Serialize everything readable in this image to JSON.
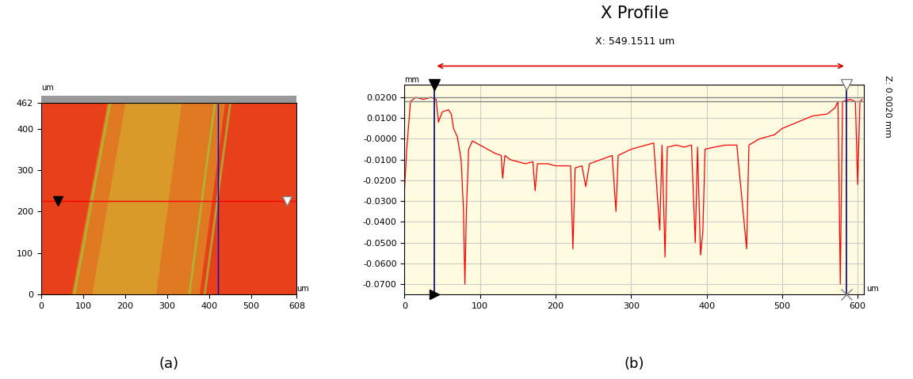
{
  "chart_data": [
    {
      "type": "image",
      "caption": "(a)",
      "x_unit": "um",
      "y_unit": "um",
      "xlim": [
        0,
        608
      ],
      "ylim": [
        0,
        462
      ],
      "xticks": [
        0,
        100,
        200,
        300,
        400,
        500,
        608
      ],
      "yticks": [
        0,
        100,
        200,
        300,
        400,
        462
      ],
      "profile_y": 225,
      "cursor_x": 420,
      "profile_start": 40,
      "profile_end": 585
    },
    {
      "type": "line",
      "title": "X Profile",
      "subtitle": "X: 549.1511 um",
      "caption": "(b)",
      "x_unit": "um",
      "y_unit": "mm",
      "annotation": "Z: 0.0020 mm",
      "color": "#ff0000",
      "grid": true,
      "x": [
        0,
        3,
        8,
        15,
        25,
        35,
        42,
        45,
        50,
        58,
        62,
        65,
        70,
        75,
        78,
        80,
        82,
        85,
        90,
        100,
        110,
        120,
        128,
        130,
        133,
        140,
        150,
        160,
        170,
        173,
        176,
        190,
        200,
        210,
        220,
        223,
        226,
        235,
        240,
        245,
        260,
        275,
        280,
        283,
        300,
        320,
        330,
        338,
        341,
        345,
        348,
        360,
        370,
        380,
        385,
        388,
        392,
        395,
        398,
        410,
        425,
        440,
        453,
        456,
        470,
        490,
        500,
        520,
        540,
        560,
        570,
        574,
        577,
        580,
        590,
        597,
        600,
        603,
        606
      ],
      "values": [
        -0.025,
        -0.005,
        0.018,
        0.02,
        0.019,
        0.02,
        0.019,
        0.008,
        0.013,
        0.014,
        0.012,
        0.005,
        0.001,
        -0.01,
        -0.033,
        -0.07,
        -0.035,
        -0.005,
        -0.001,
        -0.003,
        -0.005,
        -0.007,
        -0.008,
        -0.019,
        -0.008,
        -0.01,
        -0.011,
        -0.012,
        -0.011,
        -0.025,
        -0.012,
        -0.012,
        -0.013,
        -0.013,
        -0.013,
        -0.053,
        -0.014,
        -0.013,
        -0.023,
        -0.012,
        -0.01,
        -0.008,
        -0.035,
        -0.008,
        -0.005,
        -0.003,
        -0.002,
        -0.044,
        -0.003,
        -0.057,
        -0.004,
        -0.003,
        -0.004,
        -0.003,
        -0.05,
        -0.004,
        -0.056,
        -0.045,
        -0.005,
        -0.004,
        -0.003,
        -0.003,
        -0.053,
        -0.003,
        0.0,
        0.002,
        0.005,
        0.008,
        0.011,
        0.012,
        0.015,
        0.018,
        -0.07,
        0.018,
        0.019,
        0.018,
        -0.022,
        0.018,
        0.019
      ],
      "xlim": [
        0,
        608
      ],
      "ylim": [
        -0.075,
        0.026
      ],
      "xticks": [
        0,
        100,
        200,
        300,
        400,
        500,
        600
      ],
      "yticks": [
        {
          "value": 0.02,
          "label": "0.0200"
        },
        {
          "value": 0.01,
          "label": "0.0100"
        },
        {
          "value": 0.0,
          "label": "-0.0000"
        },
        {
          "value": -0.01,
          "label": "-0.0100"
        },
        {
          "value": -0.02,
          "label": "-0.0200"
        },
        {
          "value": -0.03,
          "label": "-0.0300"
        },
        {
          "value": -0.04,
          "label": "-0.0400"
        },
        {
          "value": -0.05,
          "label": "-0.0500"
        },
        {
          "value": -0.06,
          "label": "-0.0600"
        },
        {
          "value": -0.07,
          "label": "-0.0700"
        }
      ],
      "markers_x": [
        40,
        585
      ],
      "markers_y": [
        0.02,
        0.018
      ]
    }
  ]
}
